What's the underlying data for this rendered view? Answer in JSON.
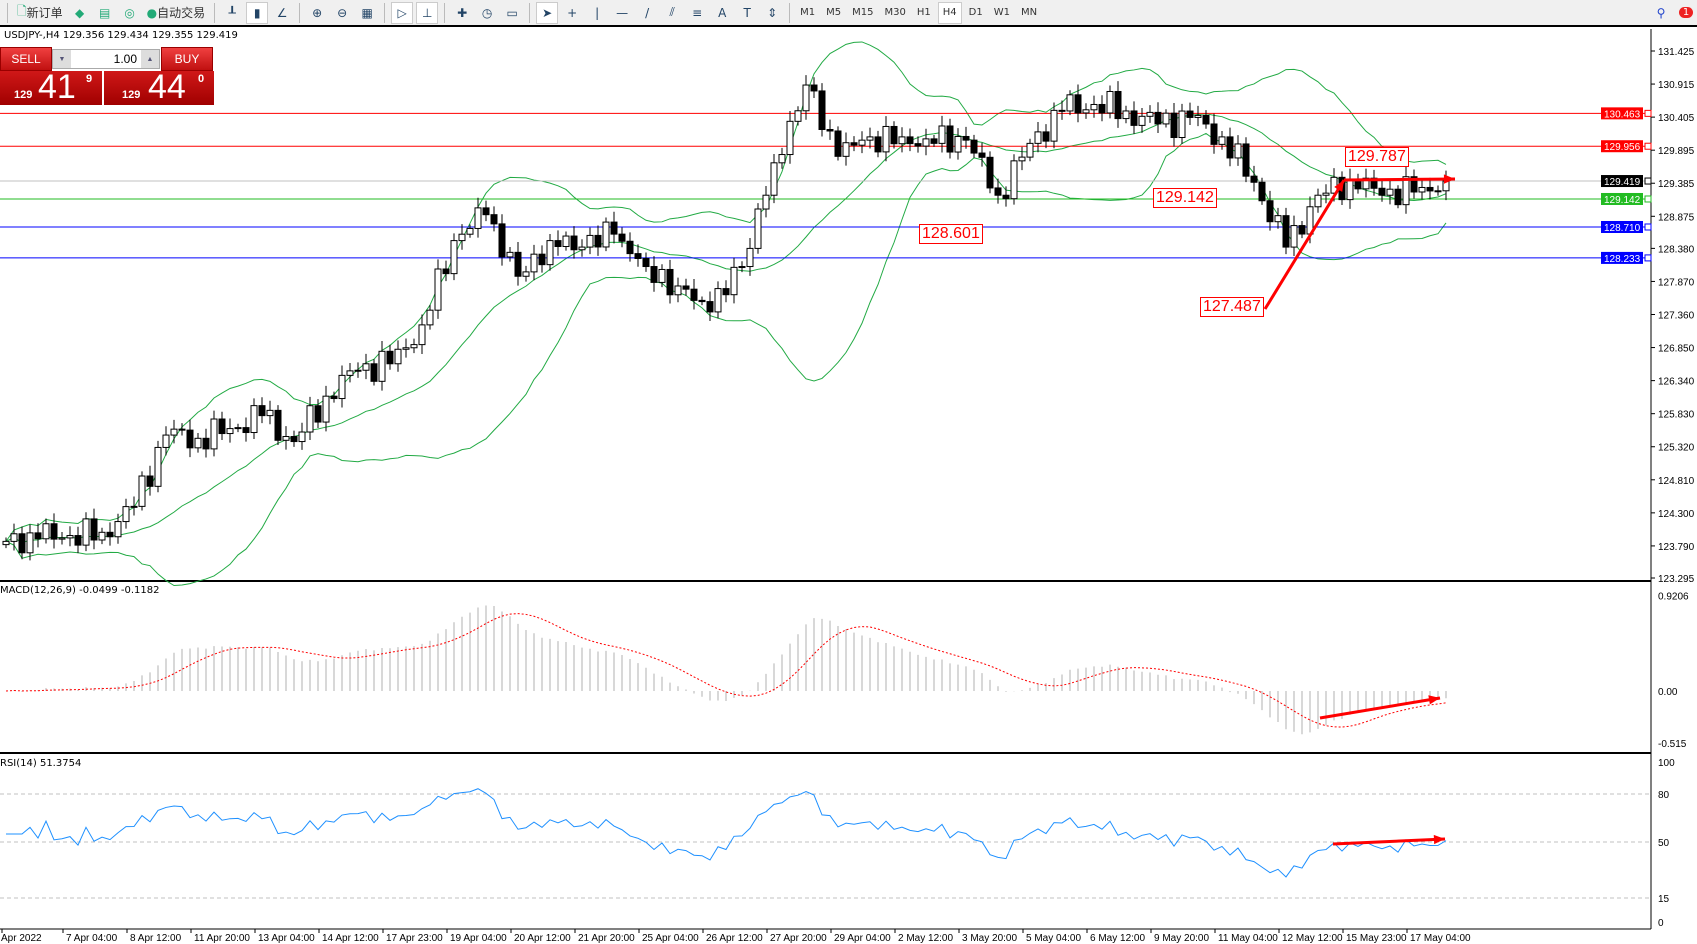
{
  "toolbar": {
    "new_order": "新订单",
    "auto_trading": "自动交易",
    "icons": [
      "new-order-icon",
      "market-watch-icon",
      "navigator-icon",
      "signals-icon",
      "auto-trading-icon",
      "bar-chart-icon",
      "candle-chart-icon",
      "line-chart-icon",
      "zoom-in-icon",
      "zoom-out-icon",
      "tile-icon",
      "auto-scroll-icon",
      "chart-shift-icon",
      "indicators-icon",
      "periods-icon",
      "templates-icon",
      "cursor-icon",
      "crosshair-icon",
      "vertical-line-icon",
      "horizontal-line-icon",
      "trendline-icon",
      "channel-icon",
      "fibonacci-icon",
      "text-icon",
      "label-icon",
      "arrows-icon"
    ],
    "timeframes": [
      "M1",
      "M5",
      "M15",
      "M30",
      "H1",
      "H4",
      "D1",
      "W1",
      "MN"
    ],
    "active_timeframe": "H4",
    "notification_count": "1"
  },
  "chart_header": "USDJPY-,H4  129.356 129.434 129.355 129.419",
  "one_click": {
    "sell": "SELL",
    "buy": "BUY",
    "lot": "1.00",
    "bid_small": "129",
    "bid_big": "41",
    "bid_sup": "9",
    "ask_small": "129",
    "ask_big": "44",
    "ask_sup": "0"
  },
  "chart_data": {
    "type": "candlestick",
    "symbol": "USDJPY-",
    "timeframe": "H4",
    "price_ticks": [
      "131.425",
      "130.915",
      "130.405",
      "129.895",
      "129.385",
      "128.875",
      "128.380",
      "127.870",
      "127.360",
      "126.850",
      "126.340",
      "125.830",
      "125.320",
      "124.810",
      "124.300",
      "123.790",
      "123.295"
    ],
    "ylim": [
      123.295,
      131.425
    ],
    "closes_every_4_bars": [
      123.86,
      123.9,
      123.95,
      124.0,
      124.4,
      125.5,
      125.45,
      125.6,
      125.8,
      125.4,
      126.1,
      126.5,
      126.6,
      127.2,
      128.5,
      128.9,
      127.95,
      128.5,
      128.4,
      128.6,
      128.1,
      127.8,
      127.4,
      128.1,
      129.7,
      130.9,
      129.8,
      130.1,
      130.1,
      130.0,
      130.05,
      129.2,
      130.0,
      130.5,
      130.6,
      130.5,
      130.3,
      130.4,
      130.1,
      129.4,
      128.4,
      129.2,
      129.45,
      129.2,
      129.25,
      129.419
    ],
    "time_labels": [
      "Apr 2022",
      "7 Apr 04:00",
      "8 Apr 12:00",
      "11 Apr 20:00",
      "13 Apr 04:00",
      "14 Apr 12:00",
      "17 Apr 23:00",
      "19 Apr 04:00",
      "20 Apr 12:00",
      "21 Apr 20:00",
      "25 Apr 04:00",
      "26 Apr 12:00",
      "27 Apr 20:00",
      "29 Apr 04:00",
      "2 May 12:00",
      "3 May 20:00",
      "5 May 04:00",
      "6 May 12:00",
      "9 May 20:00",
      "11 May 04:00",
      "12 May 12:00",
      "15 May 23:00",
      "17 May 04:00"
    ],
    "hlines": [
      {
        "price": 130.463,
        "label": "130.463",
        "color": "#ff0000"
      },
      {
        "price": 129.956,
        "label": "129.956",
        "color": "#ff0000"
      },
      {
        "price": 129.419,
        "label": "129.419",
        "color": "#000000",
        "line": "#c0c0c0"
      },
      {
        "price": 129.142,
        "label": "129.142",
        "color": "#22bb22"
      },
      {
        "price": 128.71,
        "label": "128.710",
        "color": "#0000ff"
      },
      {
        "price": 128.233,
        "label": "128.233",
        "color": "#0000ff"
      }
    ],
    "annotations": [
      "129.787",
      "129.142",
      "128.601",
      "127.487"
    ],
    "bollinger_color": "#22aa44",
    "macd": {
      "label": "MACD(12,26,9) -0.0499 -0.1182",
      "ticks": [
        "0.9206",
        "0.00",
        "-0.515"
      ],
      "ylim": [
        -0.515,
        0.9206
      ]
    },
    "rsi": {
      "label": "RSI(14) 51.3754",
      "ticks": [
        "100",
        "80",
        "50",
        "15",
        "0"
      ],
      "levels": [
        80,
        50,
        15
      ],
      "line_color": "#1e90ff"
    }
  }
}
